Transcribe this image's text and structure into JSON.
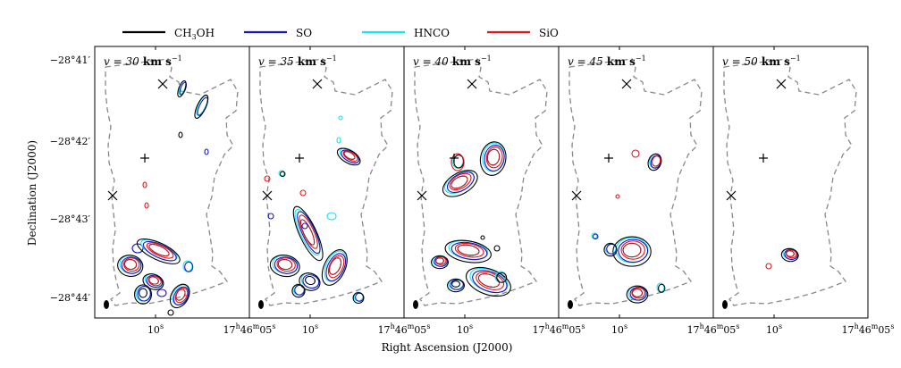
{
  "chart_data": {
    "type": "contour",
    "legend": [
      {
        "label": "CH",
        "sub": "3",
        "tail": "OH",
        "color": "#000000"
      },
      {
        "label": "SO",
        "sub": "",
        "tail": "",
        "color": "#1616c8"
      },
      {
        "label": "HNCO",
        "sub": "",
        "tail": "",
        "color": "#17e4f0"
      },
      {
        "label": "SiO",
        "sub": "",
        "tail": "",
        "color": "#e0161a"
      }
    ],
    "xlabel": "Right Ascension (J2000)",
    "ylabel": "Declination (J2000)",
    "y_ticks": [
      {
        "deg": "−28°",
        "min": "41′"
      },
      {
        "deg": "−28°",
        "min": "42′"
      },
      {
        "deg": "−28°",
        "min": "43′"
      },
      {
        "deg": "−28°",
        "min": "44′"
      }
    ],
    "x_ticks": {
      "left": "05",
      "mid": "10",
      "right_h": "17",
      "right_m": "46",
      "sup_h": "h",
      "sup_m": "m",
      "sup_s": "s"
    },
    "velocity_unit": "km s",
    "velocity_exp": "−1",
    "panels": [
      {
        "v": "v = 30",
        "velocity": 30
      },
      {
        "v": "v = 35",
        "velocity": 35
      },
      {
        "v": "v = 40",
        "velocity": 40
      },
      {
        "v": "v = 45",
        "velocity": 45
      },
      {
        "v": "v = 50",
        "velocity": 50
      }
    ]
  }
}
